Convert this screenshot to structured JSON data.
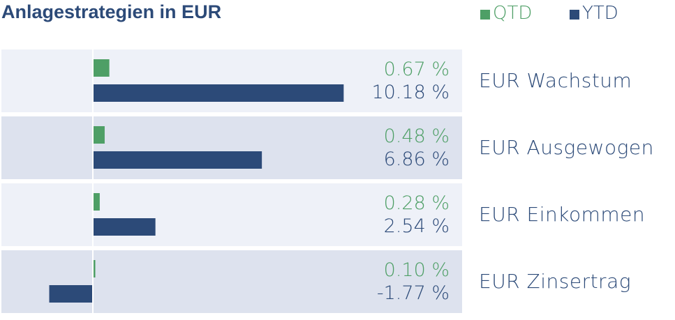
{
  "chart_data": {
    "type": "bar",
    "orientation": "horizontal",
    "title": "Anlagestrategien in EUR",
    "categories": [
      "EUR Wachstum",
      "EUR Ausgewogen",
      "EUR Einkommen",
      "EUR Zinsertrag"
    ],
    "series": [
      {
        "name": "QTD",
        "values": [
          0.67,
          0.48,
          0.28,
          0.1
        ],
        "labels": [
          "0.67 %",
          "0.48 %",
          "0.28 %",
          "0.10 %"
        ],
        "color": "#4e9f66"
      },
      {
        "name": "YTD",
        "values": [
          10.18,
          6.86,
          2.54,
          -1.77
        ],
        "labels": [
          "10.18 %",
          "6.86 %",
          "2.54 %",
          "-1.77 %"
        ],
        "color": "#2c4a78"
      }
    ],
    "legend_position": "top-right",
    "row_backgrounds": [
      "#eef1f8",
      "#dde2ee",
      "#eef1f8",
      "#dde2ee"
    ],
    "xlim": [
      -2,
      16
    ]
  }
}
